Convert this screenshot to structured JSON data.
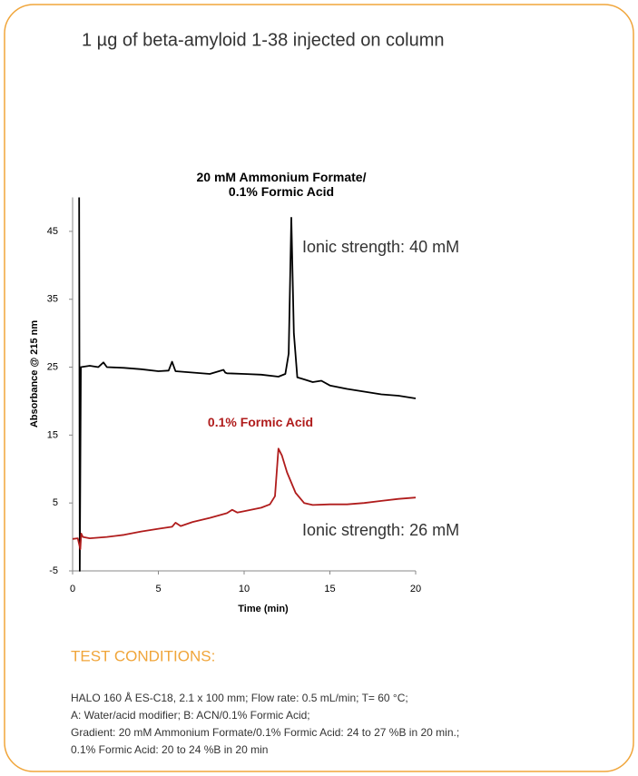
{
  "chart_data": {
    "type": "line",
    "title": "1 µg of beta-amyloid 1-38 injected on column",
    "x_label": "Time (min)",
    "y_label": "Absorbance @ 215 nm",
    "xlim": [
      0,
      20
    ],
    "xticks": [
      0,
      5,
      10,
      15,
      20
    ],
    "ylim": [
      -5,
      50
    ],
    "yticks": [
      -5,
      5,
      15,
      25,
      35,
      45
    ],
    "series": [
      {
        "name": "20 mM Ammonium Formate/ 0.1% Formic Acid",
        "color": "#000000",
        "annotation": "Ionic strength: 40 mM",
        "x": [
          0.38,
          0.42,
          0.48,
          1,
          1.5,
          1.8,
          2,
          3,
          4,
          5,
          5.6,
          5.8,
          6,
          7,
          8,
          8.8,
          8.9,
          9,
          10,
          11,
          12,
          12.4,
          12.6,
          12.75,
          12.9,
          13.1,
          13.5,
          14,
          14.5,
          15,
          16,
          17,
          18,
          19,
          20
        ],
        "values": [
          50,
          -5,
          25,
          25.2,
          25,
          25.7,
          25,
          24.9,
          24.7,
          24.4,
          24.5,
          25.8,
          24.4,
          24.2,
          24,
          24.6,
          24.2,
          24.1,
          24,
          23.9,
          23.6,
          24,
          27,
          47,
          30,
          23.5,
          23.2,
          22.8,
          23,
          22.3,
          21.8,
          21.4,
          21,
          20.8,
          20.4
        ]
      },
      {
        "name": "0.1% Formic Acid",
        "color": "#b01c1c",
        "annotation": "Ionic strength: 26 mM",
        "x": [
          0,
          0.3,
          0.45,
          0.5,
          0.6,
          1,
          2,
          3,
          4,
          5,
          5.8,
          6,
          6.3,
          7,
          8,
          9,
          9.3,
          9.6,
          10,
          11,
          11.5,
          11.8,
          12,
          12.2,
          12.5,
          13,
          13.5,
          14,
          15,
          16,
          17,
          18,
          19,
          20
        ],
        "values": [
          -0.3,
          -0.2,
          -1.8,
          0.5,
          0,
          -0.2,
          0,
          0.3,
          0.8,
          1.2,
          1.5,
          2.1,
          1.6,
          2.2,
          2.8,
          3.5,
          4,
          3.6,
          3.8,
          4.3,
          4.8,
          6,
          13,
          12,
          9.5,
          6.5,
          5,
          4.7,
          4.8,
          4.8,
          5,
          5.3,
          5.6,
          5.8
        ]
      }
    ]
  },
  "conditions": {
    "heading": "TEST CONDITIONS:",
    "lines": [
      "HALO 160 Å ES-C18, 2.1 x 100 mm; Flow rate: 0.5 mL/min; T= 60 °C;",
      "A: Water/acid modifier; B: ACN/0.1% Formic Acid;",
      "Gradient: 20 mM Ammonium Formate/0.1% Formic Acid: 24 to 27 %B in 20 min.;",
      "0.1% Formic Acid: 20 to 24 %B in 20 min"
    ]
  }
}
